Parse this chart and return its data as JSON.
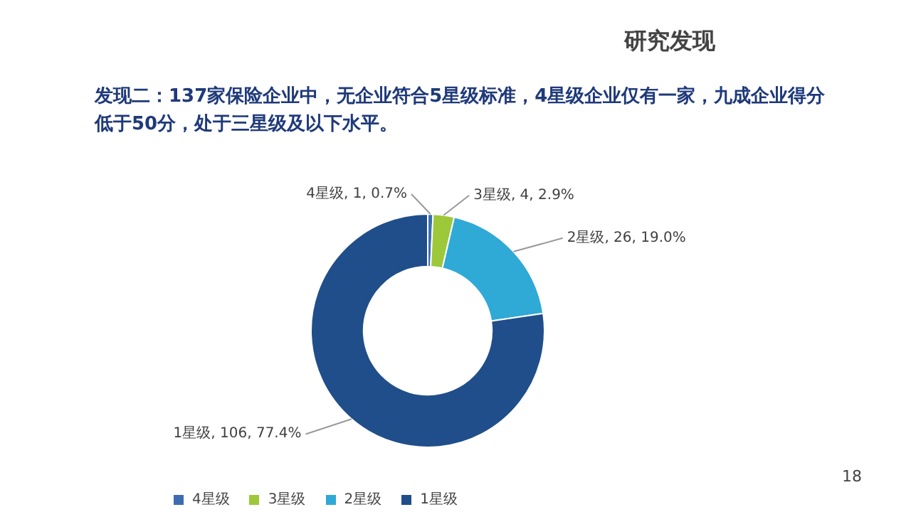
{
  "chart_data": {
    "type": "donut",
    "title": "研究发现",
    "subtitle": "发现二：137家保险企业中，无企业符合5星级标准，4星级企业仅有一家，九成企业得分低于50分，处于三星级及以下水平。",
    "categories": [
      "4星级",
      "3星级",
      "2星级",
      "1星级"
    ],
    "values": [
      1,
      4,
      26,
      106
    ],
    "colors": [
      "#3d6db0",
      "#9cc83a",
      "#2fa9d6",
      "#1f4e8a"
    ],
    "value_labels": [
      "4星级, 1, 0.7%",
      "3星级, 4, 2.9%",
      "2星级, 26, 19.0%",
      "1星级, 106, 77.4%"
    ],
    "legend": "bottom",
    "annotations": [
      "18"
    ]
  }
}
